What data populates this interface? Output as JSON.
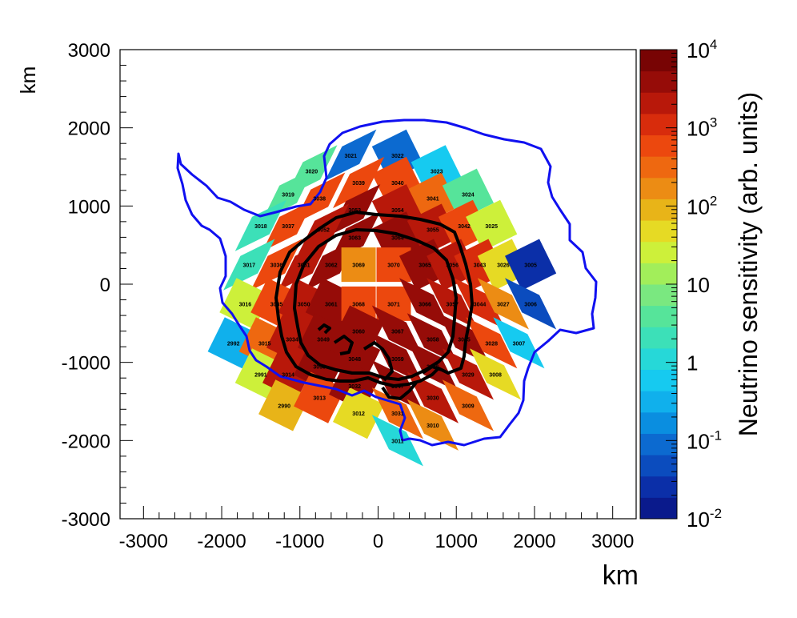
{
  "chart_data": {
    "type": "heatmap",
    "xlabel": "km",
    "ylabel": "km",
    "xlim": [
      -3300,
      3300
    ],
    "ylim": [
      -3000,
      3000
    ],
    "xticks": [
      -3000,
      -2000,
      -1000,
      0,
      1000,
      2000,
      3000
    ],
    "yticks": [
      -3000,
      -2000,
      -1000,
      0,
      1000,
      2000,
      3000
    ],
    "colorbar": {
      "label": "Neutrino sensitivity (arb. units)",
      "scale": "log",
      "range": [
        0.01,
        10000
      ],
      "tick_labels": [
        {
          "value": 10000,
          "base": "10",
          "exp": "4"
        },
        {
          "value": 1000,
          "base": "10",
          "exp": "3"
        },
        {
          "value": 100,
          "base": "10",
          "exp": "2"
        },
        {
          "value": 10,
          "base": "10",
          "exp": ""
        },
        {
          "value": 1,
          "base": "1",
          "exp": ""
        },
        {
          "value": 0.1,
          "base": "10",
          "exp": "-1"
        },
        {
          "value": 0.01,
          "base": "10",
          "exp": "-2"
        }
      ]
    },
    "cells": [
      {
        "id": "3021",
        "x": -350,
        "y": 1650,
        "level": 0.08
      },
      {
        "id": "3022",
        "x": 250,
        "y": 1650,
        "level": 0.1
      },
      {
        "id": "3020",
        "x": -850,
        "y": 1450,
        "level": 3
      },
      {
        "id": "3023",
        "x": 750,
        "y": 1450,
        "level": 0.5
      },
      {
        "id": "3039",
        "x": -250,
        "y": 1300,
        "level": 500
      },
      {
        "id": "3040",
        "x": 250,
        "y": 1300,
        "level": 500
      },
      {
        "id": "3019",
        "x": -1150,
        "y": 1150,
        "level": 5
      },
      {
        "id": "3038",
        "x": -750,
        "y": 1100,
        "level": 700
      },
      {
        "id": "3041",
        "x": 700,
        "y": 1100,
        "level": 400
      },
      {
        "id": "3024",
        "x": 1150,
        "y": 1150,
        "level": 3
      },
      {
        "id": "3053",
        "x": -300,
        "y": 950,
        "level": 3000
      },
      {
        "id": "3054",
        "x": 250,
        "y": 950,
        "level": 2500
      },
      {
        "id": "3018",
        "x": -1500,
        "y": 750,
        "level": 2
      },
      {
        "id": "3037",
        "x": -1150,
        "y": 750,
        "level": 700
      },
      {
        "id": "3052",
        "x": -700,
        "y": 700,
        "level": 2500
      },
      {
        "id": "3063",
        "x": -300,
        "y": 600,
        "level": 3000
      },
      {
        "id": "3064",
        "x": 250,
        "y": 600,
        "level": 3000
      },
      {
        "id": "3055",
        "x": 700,
        "y": 700,
        "level": 2000
      },
      {
        "id": "3042",
        "x": 1100,
        "y": 750,
        "level": 700
      },
      {
        "id": "3025",
        "x": 1450,
        "y": 750,
        "level": 20
      },
      {
        "id": "3017",
        "x": -1650,
        "y": 250,
        "level": 2
      },
      {
        "id": "3036",
        "x": -1300,
        "y": 250,
        "level": 700
      },
      {
        "id": "3051",
        "x": -950,
        "y": 250,
        "level": 2000
      },
      {
        "id": "3062",
        "x": -600,
        "y": 250,
        "level": 3000
      },
      {
        "id": "3069",
        "x": -250,
        "y": 250,
        "level": 150
      },
      {
        "id": "3070",
        "x": 200,
        "y": 250,
        "level": 700
      },
      {
        "id": "3065",
        "x": 600,
        "y": 250,
        "level": 3000
      },
      {
        "id": "3056",
        "x": 950,
        "y": 250,
        "level": 2000
      },
      {
        "id": "3043",
        "x": 1300,
        "y": 250,
        "level": 1000
      },
      {
        "id": "3026",
        "x": 1600,
        "y": 250,
        "level": 50
      },
      {
        "id": "3005",
        "x": 1950,
        "y": 250,
        "level": 0.02
      },
      {
        "id": "3016",
        "x": -1700,
        "y": -250,
        "level": 20
      },
      {
        "id": "3035",
        "x": -1300,
        "y": -250,
        "level": 700
      },
      {
        "id": "3050",
        "x": -950,
        "y": -250,
        "level": 2000
      },
      {
        "id": "3061",
        "x": -600,
        "y": -250,
        "level": 3000
      },
      {
        "id": "3068",
        "x": -250,
        "y": -250,
        "level": 700
      },
      {
        "id": "3071",
        "x": 200,
        "y": -250,
        "level": 700
      },
      {
        "id": "3066",
        "x": 600,
        "y": -250,
        "level": 3000
      },
      {
        "id": "3057",
        "x": 950,
        "y": -250,
        "level": 2000
      },
      {
        "id": "3044",
        "x": 1300,
        "y": -250,
        "level": 1000
      },
      {
        "id": "3027",
        "x": 1600,
        "y": -250,
        "level": 150
      },
      {
        "id": "3006",
        "x": 1950,
        "y": -250,
        "level": 0.05
      },
      {
        "id": "2992",
        "x": -1850,
        "y": -750,
        "level": 0.3
      },
      {
        "id": "3015",
        "x": -1450,
        "y": -750,
        "level": 300
      },
      {
        "id": "3034",
        "x": -1100,
        "y": -700,
        "level": 2000
      },
      {
        "id": "3049",
        "x": -700,
        "y": -700,
        "level": 3000
      },
      {
        "id": "3060",
        "x": -250,
        "y": -600,
        "level": 3000
      },
      {
        "id": "3067",
        "x": 250,
        "y": -600,
        "level": 5000
      },
      {
        "id": "3058",
        "x": 700,
        "y": -700,
        "level": 5000
      },
      {
        "id": "3045",
        "x": 1100,
        "y": -700,
        "level": 3000
      },
      {
        "id": "3028",
        "x": 1450,
        "y": -750,
        "level": 700
      },
      {
        "id": "3007",
        "x": 1800,
        "y": -750,
        "level": 0.5
      },
      {
        "id": "2991",
        "x": -1500,
        "y": -1150,
        "level": 20
      },
      {
        "id": "3014",
        "x": -1150,
        "y": -1150,
        "level": 2000
      },
      {
        "id": "3033",
        "x": -750,
        "y": -1050,
        "level": 3000
      },
      {
        "id": "3048",
        "x": -300,
        "y": -950,
        "level": 3000
      },
      {
        "id": "3059",
        "x": 250,
        "y": -950,
        "level": 5000
      },
      {
        "id": "3046",
        "x": 700,
        "y": -1050,
        "level": 3000
      },
      {
        "id": "3029",
        "x": 1150,
        "y": -1150,
        "level": 2000
      },
      {
        "id": "3008",
        "x": 1500,
        "y": -1150,
        "level": 40
      },
      {
        "id": "2990",
        "x": -1200,
        "y": -1550,
        "level": 100
      },
      {
        "id": "3013",
        "x": -750,
        "y": -1450,
        "level": 700
      },
      {
        "id": "3032",
        "x": -300,
        "y": -1300,
        "level": 3000
      },
      {
        "id": "3047",
        "x": 250,
        "y": -1300,
        "level": 3000
      },
      {
        "id": "3030",
        "x": 700,
        "y": -1450,
        "level": 2000
      },
      {
        "id": "3009",
        "x": 1150,
        "y": -1550,
        "level": 300
      },
      {
        "id": "3012",
        "x": -250,
        "y": -1650,
        "level": 40
      },
      {
        "id": "3031",
        "x": 250,
        "y": -1650,
        "level": 400
      },
      {
        "id": "3010",
        "x": 700,
        "y": -1800,
        "level": 150
      },
      {
        "id": "3011",
        "x": 250,
        "y": -2000,
        "level": 1
      }
    ]
  }
}
